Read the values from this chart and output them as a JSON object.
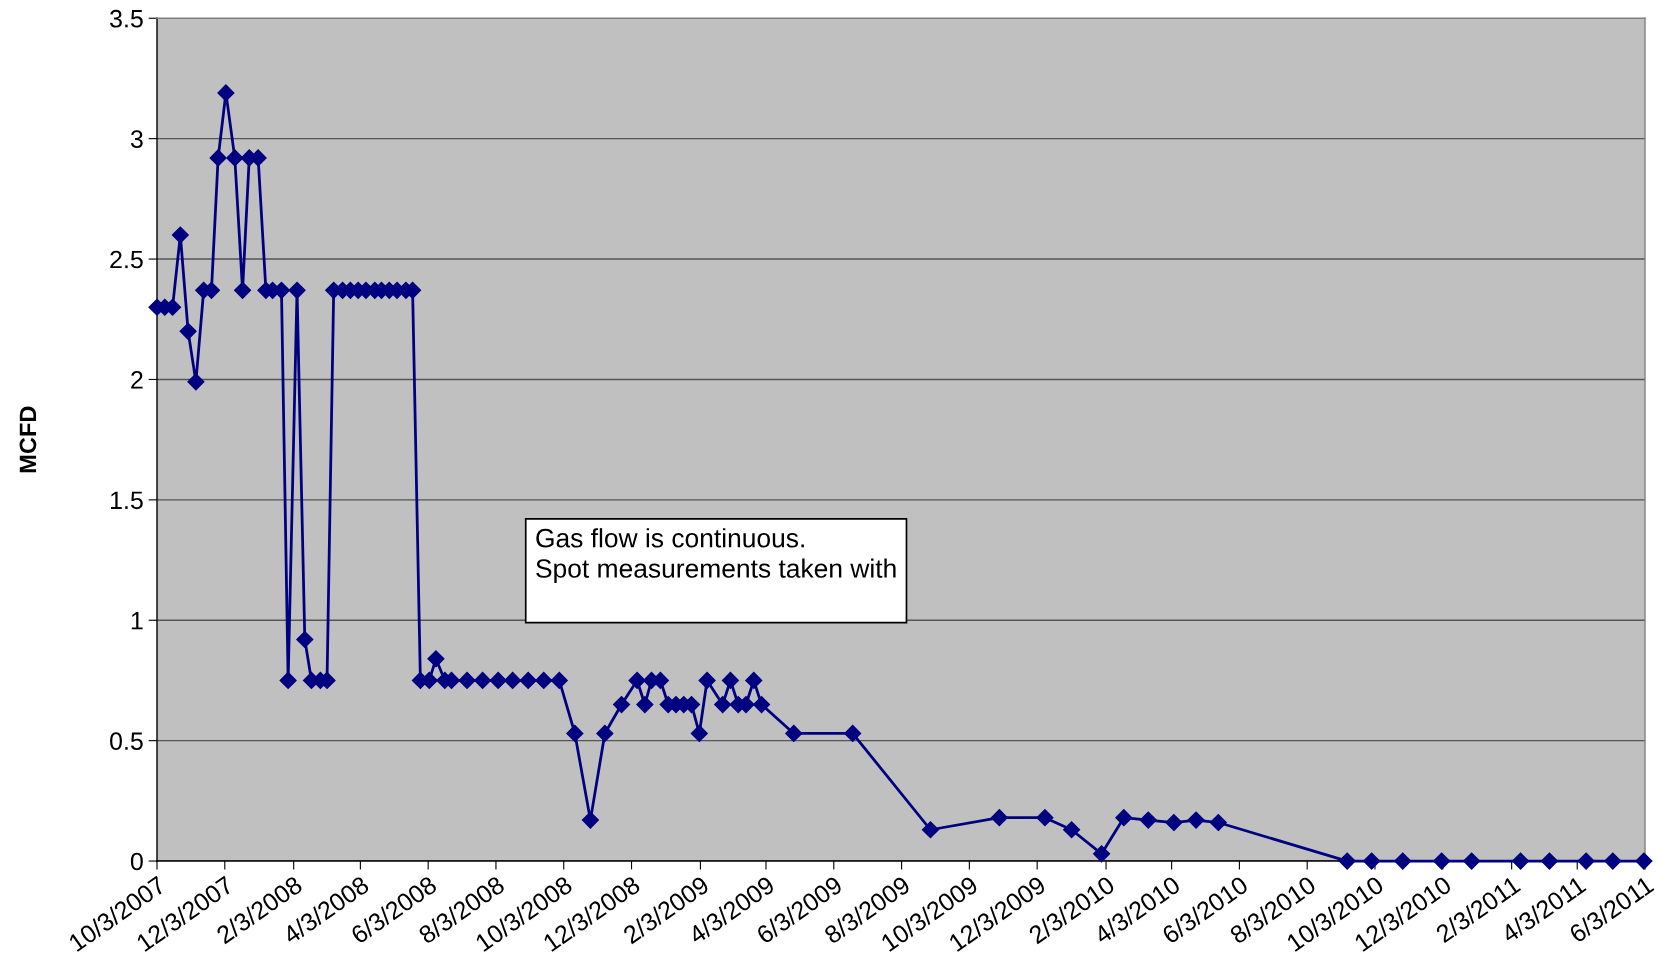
{
  "chart_data": {
    "type": "line",
    "ylabel": "MCFD",
    "x": [
      "2007-10-03",
      "2007-10-10",
      "2007-10-17",
      "2007-10-24",
      "2007-10-31",
      "2007-11-07",
      "2007-11-14",
      "2007-11-21",
      "2007-11-27",
      "2007-12-04",
      "2007-12-12",
      "2007-12-19",
      "2007-12-25",
      "2008-01-02",
      "2008-01-09",
      "2008-01-15",
      "2008-01-23",
      "2008-01-29",
      "2008-02-06",
      "2008-02-13",
      "2008-02-19",
      "2008-02-27",
      "2008-03-04",
      "2008-03-10",
      "2008-03-18",
      "2008-03-25",
      "2008-04-01",
      "2008-04-08",
      "2008-04-16",
      "2008-04-22",
      "2008-04-29",
      "2008-05-06",
      "2008-05-14",
      "2008-05-20",
      "2008-05-27",
      "2008-06-04",
      "2008-06-10",
      "2008-06-18",
      "2008-06-24",
      "2008-07-08",
      "2008-07-22",
      "2008-08-05",
      "2008-08-18",
      "2008-09-01",
      "2008-09-15",
      "2008-09-29",
      "2008-10-13",
      "2008-10-27",
      "2008-11-09",
      "2008-11-24",
      "2008-12-08",
      "2008-12-15",
      "2008-12-21",
      "2008-12-29",
      "2009-01-05",
      "2009-01-12",
      "2009-01-19",
      "2009-01-26",
      "2009-02-02",
      "2009-02-09",
      "2009-02-23",
      "2009-03-02",
      "2009-03-09",
      "2009-03-16",
      "2009-03-23",
      "2009-03-30",
      "2009-04-28",
      "2009-06-20",
      "2009-08-29",
      "2009-10-30",
      "2009-12-10",
      "2010-01-03",
      "2010-01-30",
      "2010-02-19",
      "2010-03-13",
      "2010-04-05",
      "2010-04-25",
      "2010-05-15",
      "2010-09-08",
      "2010-09-30",
      "2010-10-28",
      "2010-12-02",
      "2010-12-29",
      "2011-02-11",
      "2011-03-09",
      "2011-04-11",
      "2011-05-05",
      "2011-06-02"
    ],
    "series": [
      {
        "color": "#000080",
        "values": [
          2.3,
          2.3,
          2.3,
          2.6,
          2.2,
          1.99,
          2.37,
          2.37,
          2.92,
          3.19,
          2.92,
          2.37,
          2.92,
          2.92,
          2.37,
          2.37,
          2.37,
          0.75,
          2.37,
          0.92,
          0.75,
          0.75,
          0.75,
          2.37,
          2.37,
          2.37,
          2.37,
          2.37,
          2.37,
          2.37,
          2.37,
          2.37,
          2.37,
          2.37,
          0.75,
          0.75,
          0.84,
          0.75,
          0.75,
          0.75,
          0.75,
          0.75,
          0.75,
          0.75,
          0.75,
          0.75,
          0.53,
          0.17,
          0.53,
          0.65,
          0.75,
          0.65,
          0.75,
          0.75,
          0.65,
          0.65,
          0.65,
          0.65,
          0.53,
          0.75,
          0.65,
          0.75,
          0.65,
          0.65,
          0.75,
          0.65,
          0.53,
          0.53,
          0.13,
          0.18,
          0.18,
          0.13,
          0.03,
          0.18,
          0.17,
          0.16,
          0.17,
          0.16,
          0,
          0,
          0,
          0,
          0,
          0,
          0,
          0,
          0,
          0
        ]
      }
    ],
    "xlim": [
      "2007-10-03",
      "2011-06-03"
    ],
    "xticks": [
      {
        "value": "2007-10-03",
        "label": "10/3/2007"
      },
      {
        "value": "2007-12-03",
        "label": "12/3/2007"
      },
      {
        "value": "2008-02-03",
        "label": "2/3/2008"
      },
      {
        "value": "2008-04-03",
        "label": "4/3/2008"
      },
      {
        "value": "2008-06-03",
        "label": "6/3/2008"
      },
      {
        "value": "2008-08-03",
        "label": "8/3/2008"
      },
      {
        "value": "2008-10-03",
        "label": "10/3/2008"
      },
      {
        "value": "2008-12-03",
        "label": "12/3/2008"
      },
      {
        "value": "2009-02-03",
        "label": "2/3/2009"
      },
      {
        "value": "2009-04-03",
        "label": "4/3/2009"
      },
      {
        "value": "2009-06-03",
        "label": "6/3/2009"
      },
      {
        "value": "2009-08-03",
        "label": "8/3/2009"
      },
      {
        "value": "2009-10-03",
        "label": "10/3/2009"
      },
      {
        "value": "2009-12-03",
        "label": "12/3/2009"
      },
      {
        "value": "2010-02-03",
        "label": "2/3/2010"
      },
      {
        "value": "2010-04-03",
        "label": "4/3/2010"
      },
      {
        "value": "2010-06-03",
        "label": "6/3/2010"
      },
      {
        "value": "2010-08-03",
        "label": "8/3/2010"
      },
      {
        "value": "2010-10-03",
        "label": "10/3/2010"
      },
      {
        "value": "2010-12-03",
        "label": "12/3/2010"
      },
      {
        "value": "2011-02-03",
        "label": "2/3/2011"
      },
      {
        "value": "2011-04-03",
        "label": "4/3/2011"
      },
      {
        "value": "2011-06-03",
        "label": "6/3/2011"
      }
    ],
    "ylim": [
      0,
      3.5
    ],
    "yticks": [
      0,
      0.5,
      1,
      1.5,
      2,
      2.5,
      3,
      3.5
    ],
    "grid": "y",
    "marker": "diamond",
    "line_style": "solid",
    "annotations": [
      "Gas flow is continuous.\nSpot measurements taken with"
    ]
  }
}
